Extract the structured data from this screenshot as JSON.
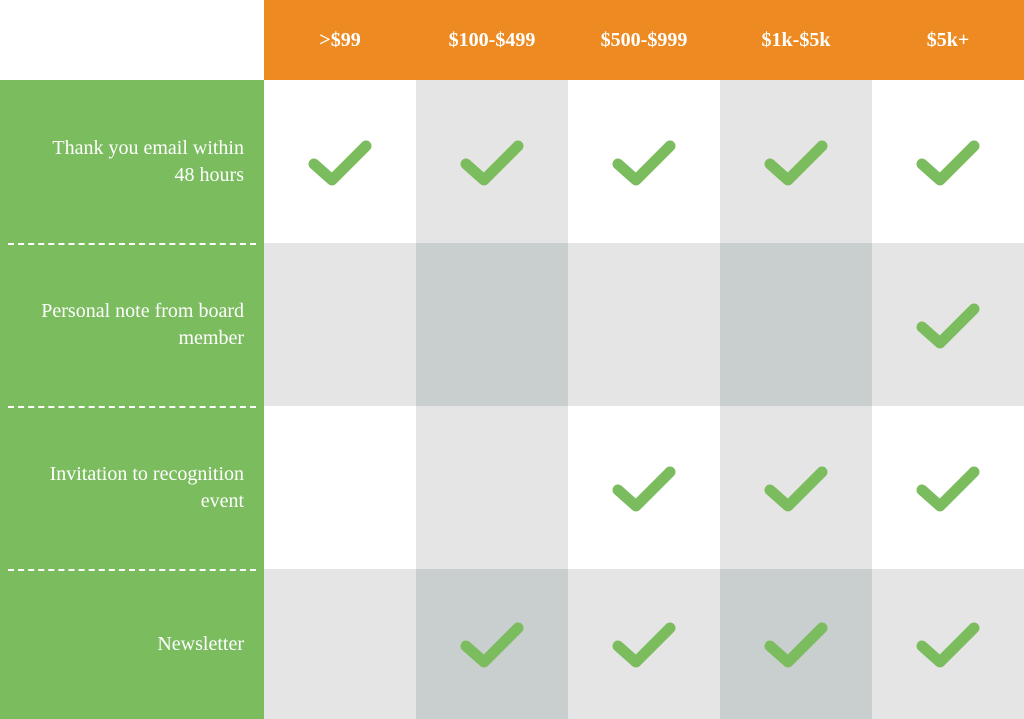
{
  "type": "table",
  "background_color": "#ffffff",
  "col_header_bg": "#ed8a22",
  "col_header_text_color": "#ffffff",
  "col_header_fontsize": 20,
  "row_header_bg": "#7bbc5f",
  "row_header_text_color": "#ffffff",
  "row_header_fontsize": 20,
  "cell_bg_white": "#ffffff",
  "cell_bg_gray_light": "#e5e5e5",
  "cell_bg_gray_mid": "#c9cfce",
  "checkmark_color": "#7bbc5f",
  "dashed_divider_color": "#ffffff",
  "columns": [
    ">$99",
    "$100-$499",
    "$500-$999",
    "$1k-$5k",
    "$5k+"
  ],
  "rows": [
    {
      "label": "Thank you email within 48 hours",
      "checks": [
        true,
        true,
        true,
        true,
        true
      ]
    },
    {
      "label": "Personal note from board member",
      "checks": [
        false,
        false,
        false,
        false,
        true
      ]
    },
    {
      "label": "Invitation to recognition event",
      "checks": [
        false,
        false,
        true,
        true,
        true
      ]
    },
    {
      "label": "Newsletter",
      "checks": [
        false,
        true,
        true,
        true,
        true
      ]
    }
  ]
}
